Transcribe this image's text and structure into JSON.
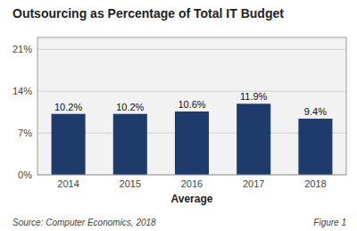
{
  "chart_data": {
    "type": "bar",
    "title": "Outsourcing as Percentage of Total IT Budget",
    "x_label": "Average",
    "categories": [
      "2014",
      "2015",
      "2016",
      "2017",
      "2018"
    ],
    "values": [
      10.2,
      10.2,
      10.6,
      11.9,
      9.4
    ],
    "value_labels": [
      "10.2%",
      "10.2%",
      "10.6%",
      "11.9%",
      "9.4%"
    ],
    "data_labels": true,
    "color": "#1F3B6B",
    "ylim": [
      0,
      23
    ],
    "yticks": [
      {
        "value": 0,
        "label": "0%"
      },
      {
        "value": 7,
        "label": "7%"
      },
      {
        "value": 14,
        "label": "14%"
      },
      {
        "value": 21,
        "label": "21%"
      }
    ],
    "grid": true,
    "annotations": [
      "Source: Computer Economics, 2018",
      "Figure 1"
    ]
  }
}
